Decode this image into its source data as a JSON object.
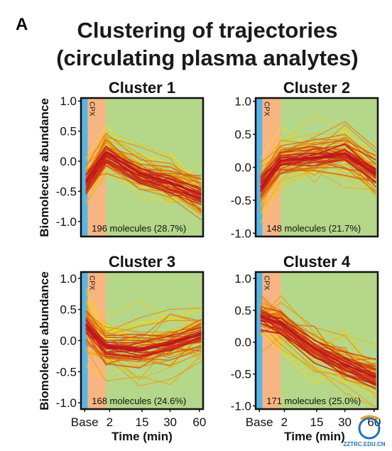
{
  "panel_label": "A",
  "title_line1": "Clustering of trajectories",
  "title_line2": "(circulating plasma analytes)",
  "ylabel": "Biomolecule abundance",
  "xlabel": "Time (min)",
  "cpx_label": "CPX",
  "watermark": "ZZTRC.EDU.CN",
  "colors": {
    "baseline_band": "#5ab4e6",
    "cpx_band": "#f7b584",
    "recovery_band": "#b5d78a",
    "line_light": "#ffe000",
    "line_dark": "#c0161d"
  },
  "chart_data": [
    {
      "type": "line",
      "title": "Cluster 1",
      "count_label": "196 molecules (28.7%)",
      "x": [
        "Base",
        "2",
        "15",
        "30",
        "60"
      ],
      "ylim": [
        -1.25,
        1.05
      ],
      "yticks": [
        "1.0",
        "0.5",
        "0.0",
        "-0.5",
        "-1.0"
      ],
      "yticks_values": [
        1.0,
        0.5,
        0.0,
        -0.5,
        -1.0
      ],
      "mean": [
        -0.35,
        0.15,
        -0.2,
        -0.35,
        -0.55
      ],
      "spread": 0.2
    },
    {
      "type": "line",
      "title": "Cluster 2",
      "count_label": "148 molecules (21.7%)",
      "x": [
        "Base",
        "2",
        "15",
        "30",
        "60"
      ],
      "ylim": [
        -1.05,
        1.05
      ],
      "yticks": [
        "1.0",
        "0.5",
        "0.0",
        "-0.5",
        "-1.0"
      ],
      "yticks_values": [
        1.0,
        0.5,
        0.0,
        -0.5,
        -1.0
      ],
      "mean": [
        -0.3,
        0.1,
        0.15,
        0.2,
        -0.1
      ],
      "spread": 0.2
    },
    {
      "type": "line",
      "title": "Cluster 3",
      "count_label": "168 molecules (24.6%)",
      "x": [
        "Base",
        "2",
        "15",
        "30",
        "60"
      ],
      "ylim": [
        -1.1,
        1.1
      ],
      "yticks": [
        "1.0",
        "0.5",
        "0.0",
        "-0.5",
        "-1.0"
      ],
      "yticks_values": [
        1.0,
        0.5,
        0.0,
        -0.5,
        -1.0
      ],
      "mean": [
        0.25,
        -0.1,
        -0.15,
        -0.05,
        0.1
      ],
      "spread": 0.2
    },
    {
      "type": "line",
      "title": "Cluster 4",
      "count_label": "171 molecules (25.0%)",
      "x": [
        "Base",
        "2",
        "15",
        "30",
        "60"
      ],
      "ylim": [
        -1.05,
        1.1
      ],
      "yticks": [
        "1.0",
        "0.5",
        "0.0",
        "-0.5",
        "-1.0"
      ],
      "yticks_values": [
        1.0,
        0.5,
        0.0,
        -0.5,
        -1.0
      ],
      "mean": [
        0.4,
        0.3,
        -0.1,
        -0.35,
        -0.55
      ],
      "spread": 0.2
    }
  ]
}
